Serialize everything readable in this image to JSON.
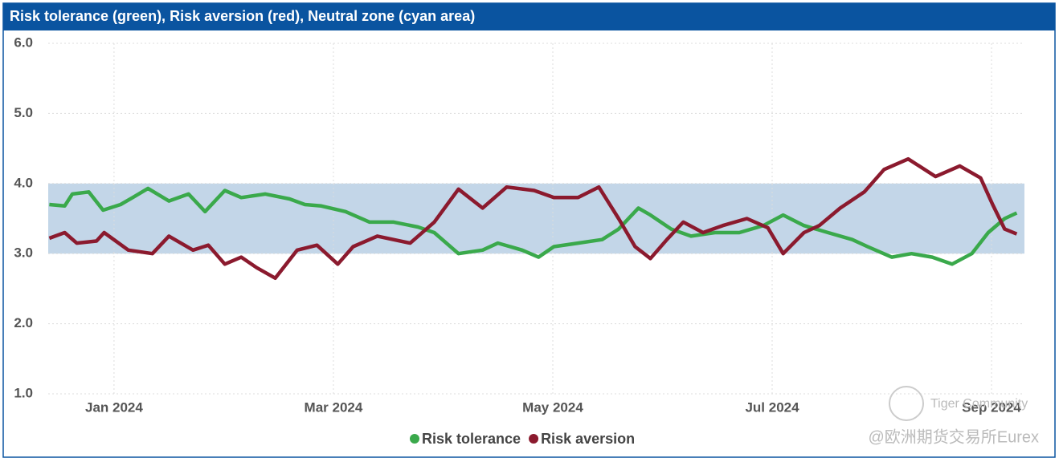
{
  "chart_data": {
    "type": "line",
    "title": "Risk tolerance (green), Risk aversion (red), Neutral zone (cyan area)",
    "band": [
      3,
      4
    ],
    "band_color": "#c3d6e8",
    "xlim": [
      0.4,
      9.3
    ],
    "xticks": [
      {
        "value": 1,
        "label": "Jan 2024"
      },
      {
        "value": 3,
        "label": "Mar 2024"
      },
      {
        "value": 5,
        "label": "May 2024"
      },
      {
        "value": 7,
        "label": "Jul 2024"
      },
      {
        "value": 9,
        "label": "Sep 2024"
      }
    ],
    "ylim": [
      1,
      6
    ],
    "yticks": [
      {
        "value": 1,
        "label": "1.0"
      },
      {
        "value": 2,
        "label": "2.0"
      },
      {
        "value": 3,
        "label": "3.0"
      },
      {
        "value": 4,
        "label": "4.0"
      },
      {
        "value": 5,
        "label": "5.0"
      },
      {
        "value": 6,
        "label": "6.0"
      }
    ],
    "grid": true,
    "series": [
      {
        "name": "Risk tolerance",
        "color": "#3aa94b",
        "x": [
          0.41,
          0.55,
          0.62,
          0.77,
          0.9,
          1.06,
          1.17,
          1.31,
          1.5,
          1.68,
          1.83,
          2.01,
          2.16,
          2.38,
          2.6,
          2.74,
          2.89,
          3.11,
          3.33,
          3.55,
          3.77,
          3.92,
          4.14,
          4.36,
          4.5,
          4.72,
          4.87,
          5.01,
          5.23,
          5.45,
          5.6,
          5.78,
          5.89,
          6.08,
          6.26,
          6.48,
          6.7,
          6.92,
          7.1,
          7.29,
          7.51,
          7.73,
          7.87,
          8.09,
          8.27,
          8.46,
          8.64,
          8.82,
          8.97,
          9.12,
          9.23
        ],
        "values": [
          3.7,
          3.68,
          3.85,
          3.88,
          3.62,
          3.7,
          3.8,
          3.93,
          3.75,
          3.85,
          3.6,
          3.9,
          3.8,
          3.85,
          3.78,
          3.7,
          3.68,
          3.6,
          3.45,
          3.45,
          3.38,
          3.3,
          3.0,
          3.05,
          3.15,
          3.05,
          2.95,
          3.1,
          3.15,
          3.2,
          3.35,
          3.65,
          3.55,
          3.35,
          3.25,
          3.3,
          3.3,
          3.4,
          3.55,
          3.4,
          3.3,
          3.2,
          3.1,
          2.95,
          3.0,
          2.95,
          2.85,
          3.0,
          3.3,
          3.5,
          3.58
        ]
      },
      {
        "name": "Risk aversion",
        "color": "#8b1a2e",
        "x": [
          0.41,
          0.55,
          0.66,
          0.84,
          0.91,
          1.13,
          1.35,
          1.5,
          1.72,
          1.86,
          2.01,
          2.16,
          2.3,
          2.47,
          2.67,
          2.85,
          3.04,
          3.18,
          3.4,
          3.7,
          3.92,
          4.14,
          4.36,
          4.58,
          4.83,
          5.01,
          5.23,
          5.42,
          5.6,
          5.75,
          5.89,
          6.04,
          6.19,
          6.37,
          6.55,
          6.77,
          6.96,
          7.1,
          7.29,
          7.43,
          7.62,
          7.84,
          8.02,
          8.24,
          8.49,
          8.71,
          8.9,
          9.01,
          9.12,
          9.23
        ],
        "values": [
          3.22,
          3.3,
          3.15,
          3.18,
          3.3,
          3.05,
          3.0,
          3.25,
          3.05,
          3.12,
          2.85,
          2.95,
          2.8,
          2.65,
          3.05,
          3.12,
          2.85,
          3.1,
          3.25,
          3.15,
          3.45,
          3.92,
          3.65,
          3.95,
          3.9,
          3.8,
          3.8,
          3.95,
          3.5,
          3.1,
          2.93,
          3.2,
          3.45,
          3.3,
          3.4,
          3.5,
          3.37,
          3.0,
          3.3,
          3.4,
          3.65,
          3.88,
          4.2,
          4.35,
          4.1,
          4.25,
          4.08,
          3.7,
          3.35,
          3.28
        ]
      }
    ],
    "watermark": [
      "Tiger Community",
      "@欧洲期货交易所Eurex"
    ]
  }
}
